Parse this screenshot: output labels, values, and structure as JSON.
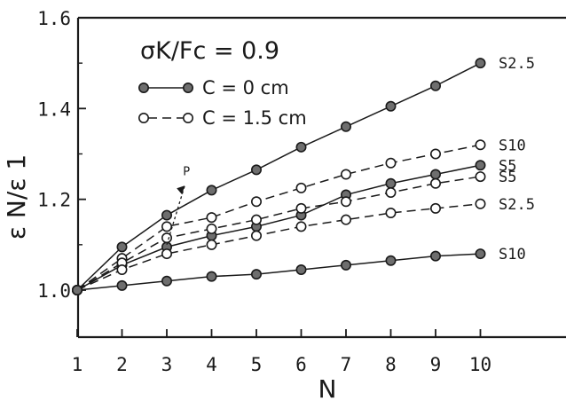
{
  "chart_data": {
    "type": "line",
    "title": "",
    "xlabel": "N",
    "ylabel": "ε N/ε 1",
    "xlim": [
      1,
      10
    ],
    "ylim": [
      1.0,
      1.6
    ],
    "x_ticks": [
      "1",
      "2",
      "3",
      "4",
      "5",
      "6",
      "7",
      "8",
      "9",
      "10"
    ],
    "y_ticks": [
      "1.0",
      "1.2",
      "1.4",
      "1.6"
    ],
    "legend": {
      "title": "σK/Fc = 0.9",
      "entries": [
        {
          "label": "C = 0 cm",
          "line": "solid",
          "marker": "filled"
        },
        {
          "label": "C = 1.5 cm",
          "line": "dashed",
          "marker": "open"
        }
      ]
    },
    "annotation": {
      "text": "P",
      "x": 3.4,
      "y": 1.23
    },
    "x": [
      1,
      2,
      3,
      4,
      5,
      6,
      7,
      8,
      9,
      10
    ],
    "series": [
      {
        "label": "S2.5",
        "line": "solid",
        "marker": "filled",
        "values": [
          1.0,
          1.095,
          1.165,
          1.22,
          1.265,
          1.315,
          1.36,
          1.405,
          1.45,
          1.5
        ]
      },
      {
        "label": "S10",
        "line": "dashed",
        "marker": "open",
        "values": [
          1.0,
          1.07,
          1.14,
          1.16,
          1.195,
          1.225,
          1.255,
          1.28,
          1.3,
          1.32
        ]
      },
      {
        "label": "S5",
        "line": "solid",
        "marker": "filled",
        "values": [
          1.0,
          1.055,
          1.095,
          1.12,
          1.14,
          1.165,
          1.21,
          1.235,
          1.255,
          1.275
        ]
      },
      {
        "label": "S5",
        "line": "dashed",
        "marker": "open",
        "values": [
          1.0,
          1.06,
          1.115,
          1.135,
          1.155,
          1.18,
          1.195,
          1.215,
          1.235,
          1.25
        ]
      },
      {
        "label": "S2.5",
        "line": "dashed",
        "marker": "open",
        "values": [
          1.0,
          1.045,
          1.08,
          1.1,
          1.12,
          1.14,
          1.155,
          1.17,
          1.18,
          1.19
        ]
      },
      {
        "label": "S10",
        "line": "solid",
        "marker": "filled",
        "values": [
          1.0,
          1.01,
          1.02,
          1.03,
          1.035,
          1.045,
          1.055,
          1.065,
          1.075,
          1.08
        ]
      }
    ]
  }
}
